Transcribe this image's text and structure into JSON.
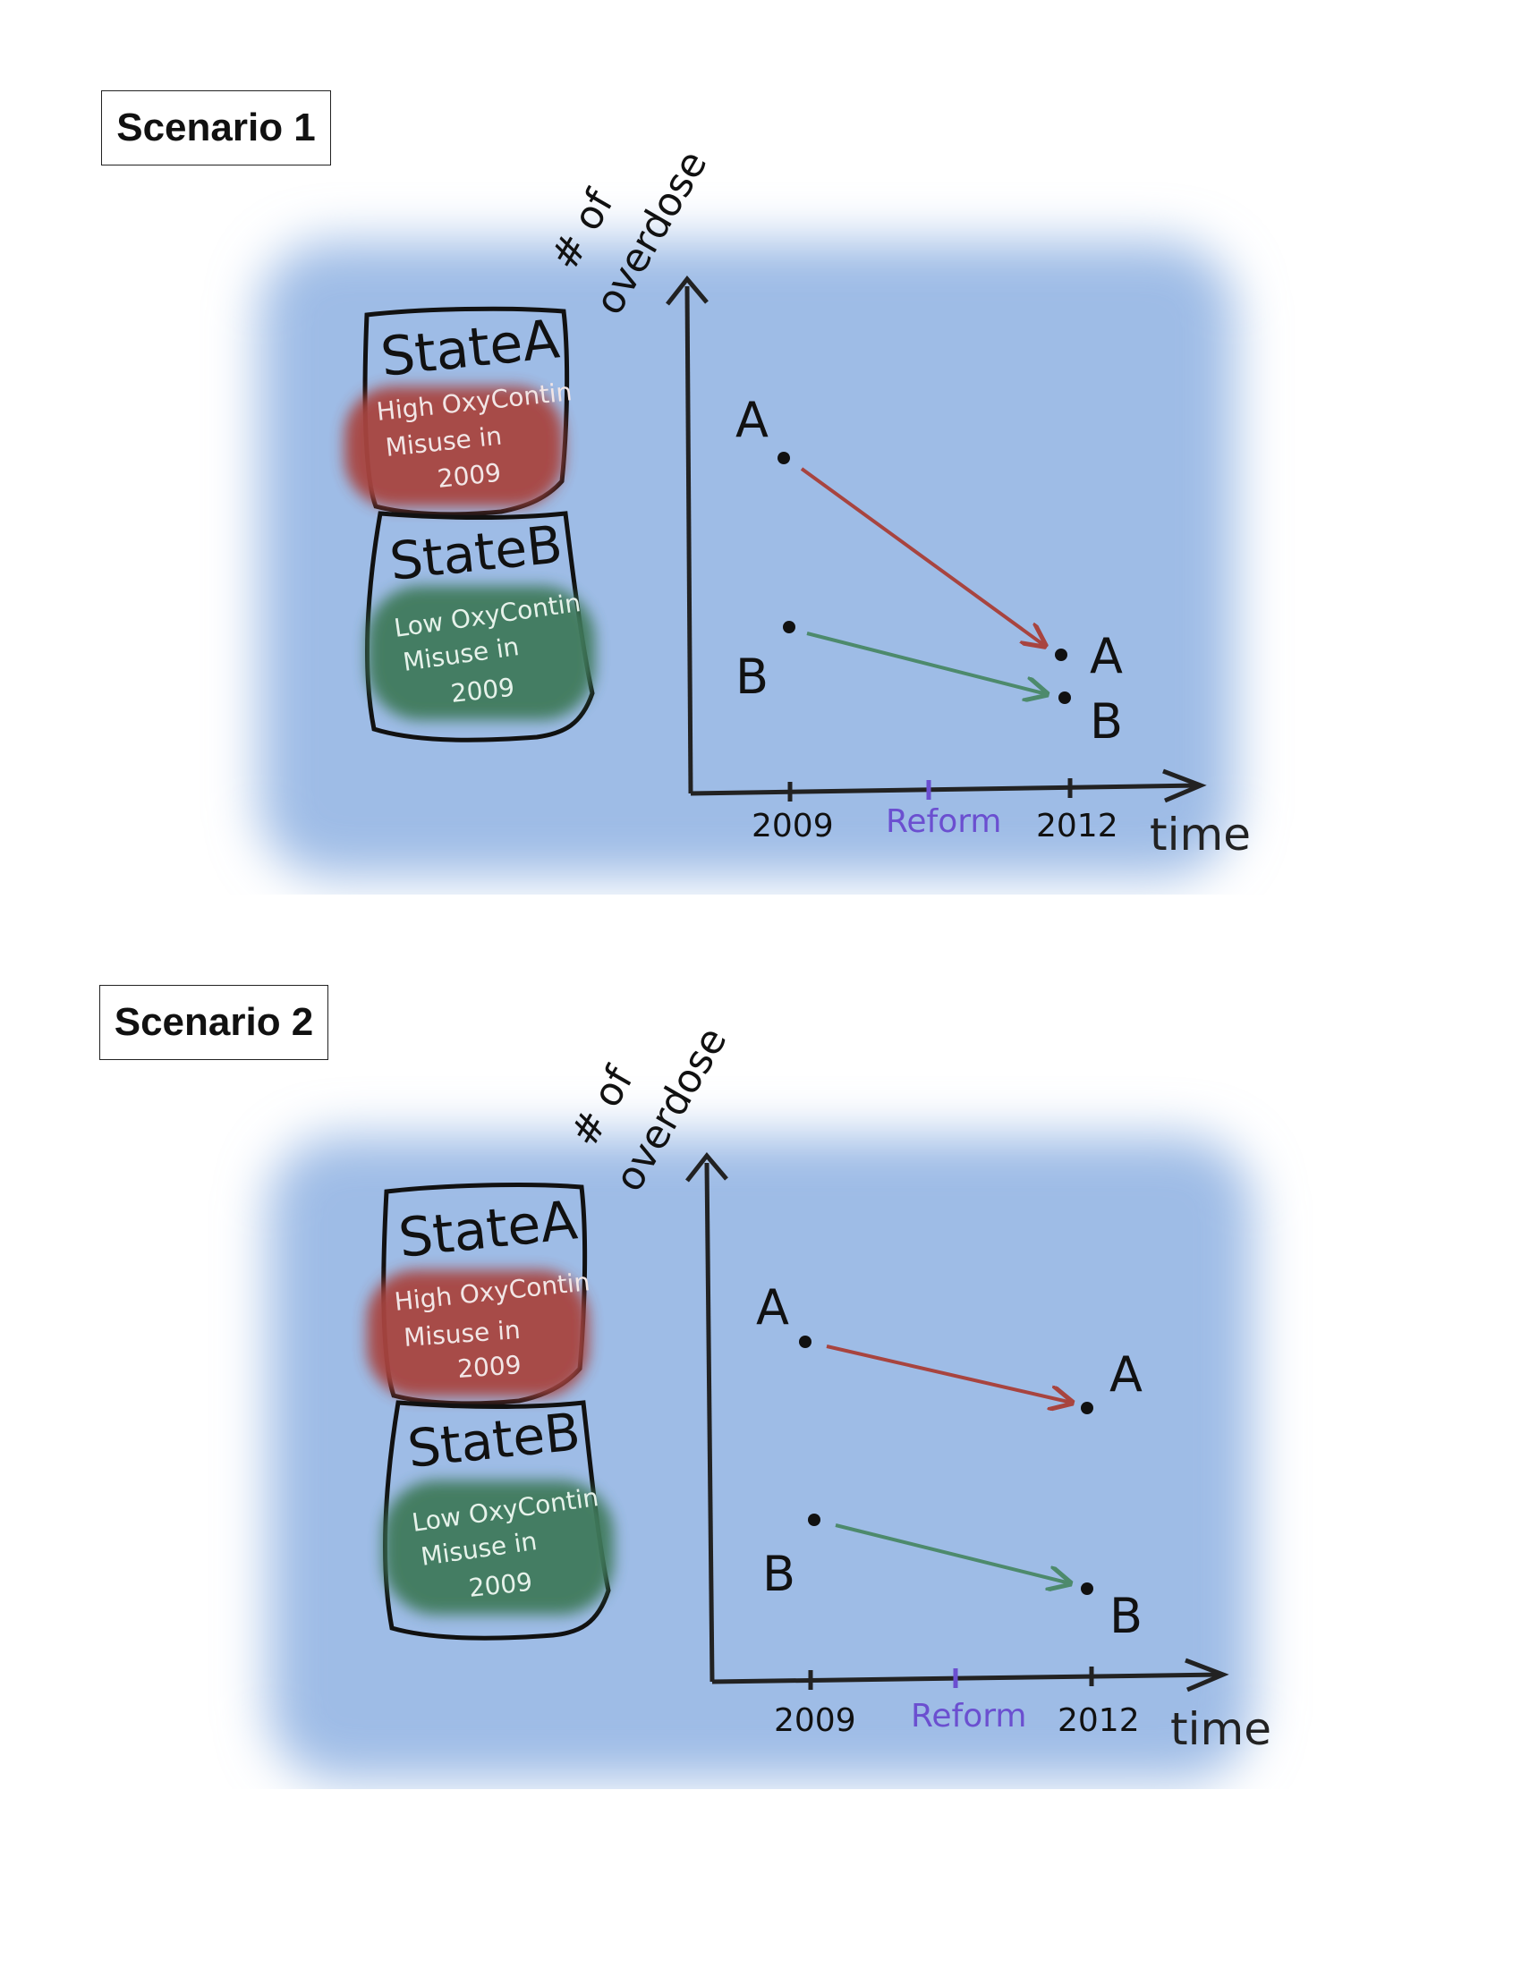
{
  "scenarios": [
    {
      "label": "Scenario 1",
      "state_a": {
        "title": "StateA",
        "desc": [
          "High OxyContin",
          "Misuse in",
          "2009"
        ],
        "color": "#a8443f"
      },
      "state_b": {
        "title": "StateB",
        "desc": [
          "Low OxyContin",
          "Misuse in",
          "2009"
        ],
        "color": "#3f7a5b"
      },
      "y_axis_label": [
        "# of",
        "overdose"
      ],
      "x_axis_label": "time",
      "ticks": {
        "start": "2009",
        "reform": "Reform",
        "end": "2012"
      },
      "points": {
        "a_start_label": "A",
        "b_start_label": "B",
        "a_end_label": "A",
        "b_end_label": "B"
      },
      "arrow_colors": {
        "a": "#a8443f",
        "b": "#4d8a6c"
      },
      "reform_color": "#6b4fd0"
    },
    {
      "label": "Scenario 2",
      "state_a": {
        "title": "StateA",
        "desc": [
          "High OxyContin",
          "Misuse in",
          "2009"
        ],
        "color": "#a8443f"
      },
      "state_b": {
        "title": "StateB",
        "desc": [
          "Low OxyContin",
          "Misuse in",
          "2009"
        ],
        "color": "#3f7a5b"
      },
      "y_axis_label": [
        "# of",
        "overdose"
      ],
      "x_axis_label": "time",
      "ticks": {
        "start": "2009",
        "reform": "Reform",
        "end": "2012"
      },
      "points": {
        "a_start_label": "A",
        "b_start_label": "B",
        "a_end_label": "A",
        "b_end_label": "B"
      },
      "arrow_colors": {
        "a": "#a8443f",
        "b": "#4d8a6c"
      },
      "reform_color": "#6b4fd0"
    }
  ]
}
